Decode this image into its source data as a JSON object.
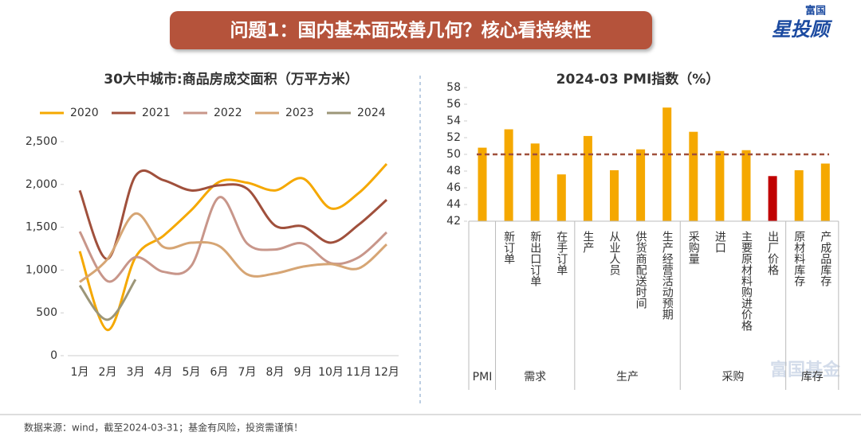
{
  "banner": {
    "title": "问题1：国内基本面改善几何？核心看持续性"
  },
  "logo": {
    "top": "富国",
    "main": "星投顾"
  },
  "watermark": "富国基金",
  "footer": "数据来源：wind，截至2024-03-31；基金有风险，投资需谨慎！",
  "chart_data": [
    {
      "type": "line",
      "title": "30大中城市:商品房成交面积（万平方米）",
      "categories": [
        "1月",
        "2月",
        "3月",
        "4月",
        "5月",
        "6月",
        "7月",
        "8月",
        "9月",
        "10月",
        "11月",
        "12月"
      ],
      "series": [
        {
          "name": "2020",
          "color": "#f5a800",
          "values": [
            1220,
            300,
            1150,
            1400,
            1700,
            2030,
            2020,
            1930,
            2070,
            1720,
            1900,
            2240
          ]
        },
        {
          "name": "2021",
          "color": "#a0503c",
          "values": [
            1930,
            1130,
            2100,
            2050,
            1930,
            1990,
            1950,
            1520,
            1510,
            1320,
            1530,
            1820
          ]
        },
        {
          "name": "2022",
          "color": "#c8968a",
          "values": [
            1450,
            870,
            1150,
            980,
            1050,
            1850,
            1310,
            1240,
            1310,
            1080,
            1150,
            1440
          ]
        },
        {
          "name": "2023",
          "color": "#d6a574",
          "values": [
            860,
            1130,
            1660,
            1270,
            1320,
            1280,
            950,
            960,
            1040,
            1070,
            1020,
            1300
          ]
        },
        {
          "name": "2024",
          "color": "#9c9678",
          "values": [
            820,
            420,
            890,
            null,
            null,
            null,
            null,
            null,
            null,
            null,
            null,
            null
          ]
        }
      ],
      "ylim": [
        0,
        2500
      ],
      "yticks": [
        0,
        {
          "value": 500,
          "label": "500"
        },
        {
          "value": 1000,
          "label": "1,000"
        },
        {
          "value": 1500,
          "label": "1,500"
        },
        {
          "value": 2000,
          "label": "2,000"
        },
        {
          "value": 2500,
          "label": "2,500"
        }
      ],
      "legend": "top"
    },
    {
      "type": "grouped-bar",
      "title": "2024-03 PMI指数（%）",
      "color": "#f5a800",
      "groups": [
        {
          "label": "PMI",
          "categories": [
            null
          ],
          "values": [
            50.8
          ],
          "colors": [
            "#f5a800"
          ]
        },
        {
          "label": "需求",
          "categories": [
            "新订单",
            "新出口订单",
            "在手订单"
          ],
          "values": [
            53.0,
            51.3,
            47.6
          ],
          "colors": [
            "#f5a800",
            "#f5a800",
            "#f5a800"
          ]
        },
        {
          "label": "生产",
          "categories": [
            "生产",
            "从业人员",
            "供货商配送时间",
            "生产经营活动预期"
          ],
          "values": [
            52.2,
            48.1,
            50.6,
            55.6
          ],
          "colors": [
            "#f5a800",
            "#f5a800",
            "#f5a800",
            "#f5a800"
          ]
        },
        {
          "label": "采购",
          "categories": [
            "采购量",
            "进口",
            "主要原材料购进价格",
            "出厂价格"
          ],
          "values": [
            52.7,
            50.4,
            50.5,
            47.4
          ],
          "colors": [
            "#f5a800",
            "#f5a800",
            "#f5a800",
            "#c00000"
          ]
        },
        {
          "label": "库存",
          "categories": [
            "原材料库存",
            "产成品库存"
          ],
          "values": [
            48.1,
            48.9
          ],
          "colors": [
            "#f5a800",
            "#f5a800"
          ]
        }
      ],
      "ylim": [
        42,
        58
      ],
      "yticks": [
        42,
        44,
        46,
        48,
        50,
        52,
        54,
        56,
        58
      ],
      "reference_line": {
        "value": 50,
        "color": "#a0503c"
      }
    }
  ]
}
